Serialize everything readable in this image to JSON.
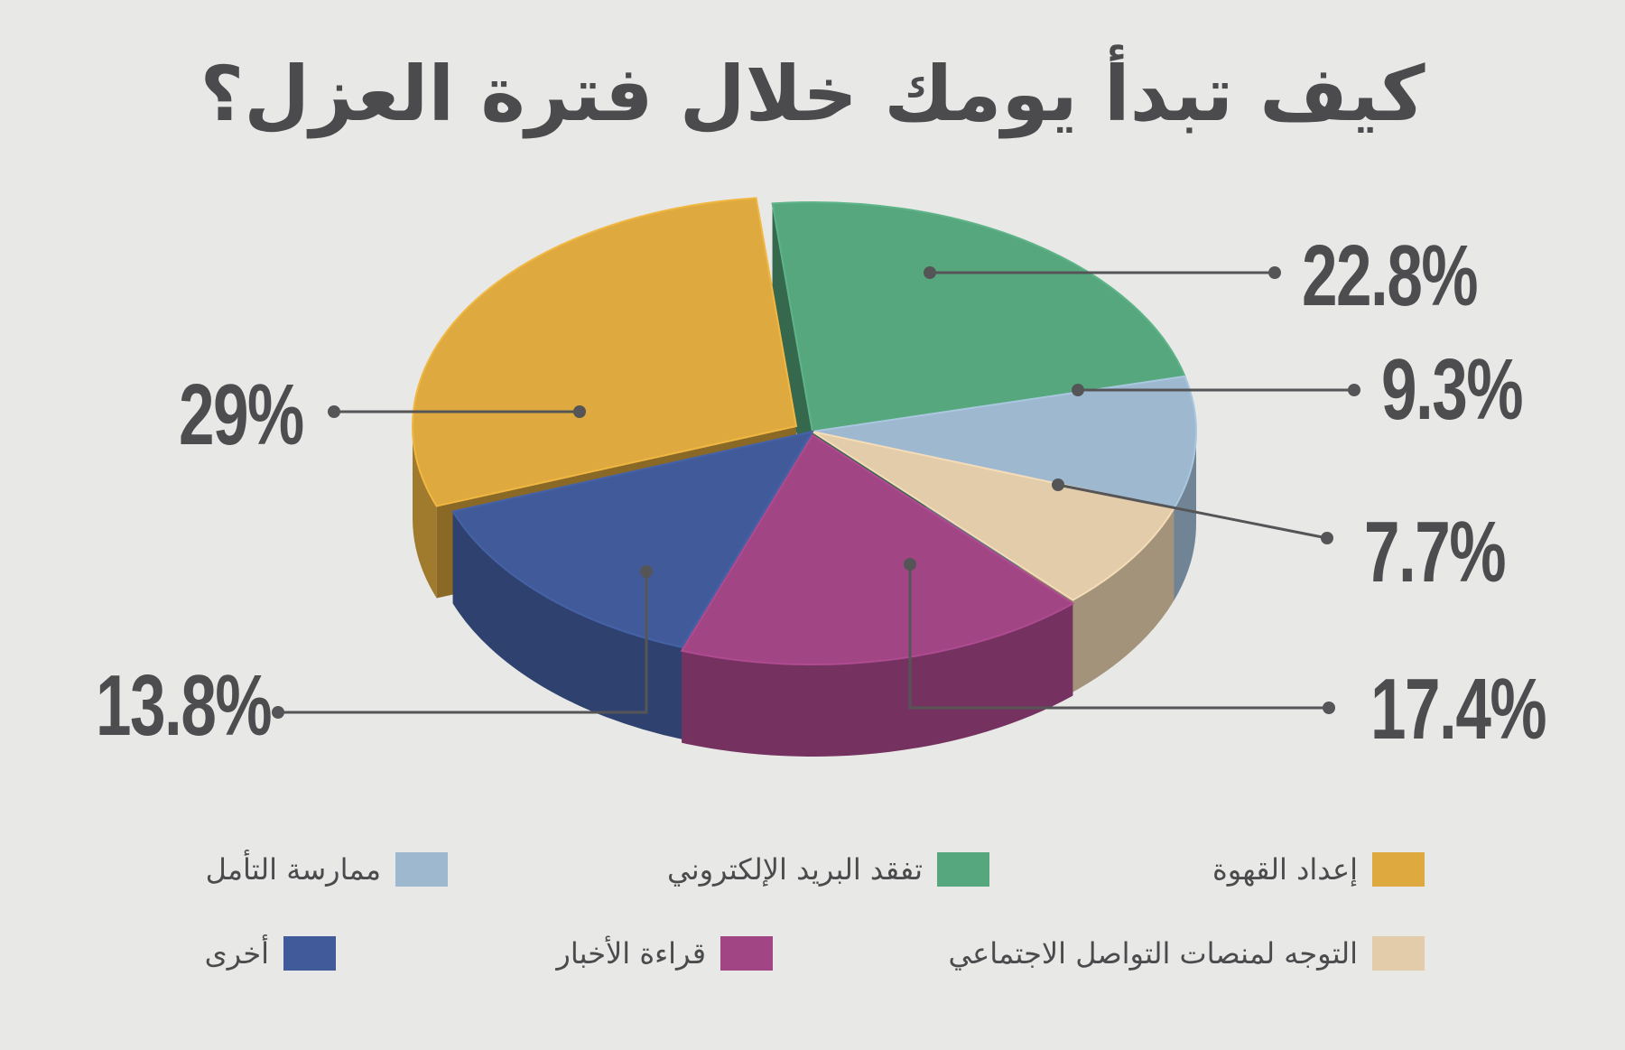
{
  "title": "كيف تبدأ يومك خلال فترة العزل؟",
  "chart_data": {
    "type": "pie",
    "style": "3d",
    "title": "كيف تبدأ يومك خلال فترة العزل؟",
    "slices": [
      {
        "label": "تفقد البريد الإلكتروني",
        "value": 22.8,
        "display": "22.8%",
        "color": "#57a77e"
      },
      {
        "label": "ممارسة التأمل",
        "value": 9.3,
        "display": "9.3%",
        "color": "#9db8cf"
      },
      {
        "label": "التوجه لمنصات التواصل الاجتماعي",
        "value": 7.7,
        "display": "7.7%",
        "color": "#e3ccaa"
      },
      {
        "label": "قراءة الأخبار",
        "value": 17.4,
        "display": "17.4%",
        "color": "#a24585"
      },
      {
        "label": "أخرى",
        "value": 13.8,
        "display": "13.8%",
        "color": "#415b9a"
      },
      {
        "label": "إعداد القهوة",
        "value": 29,
        "display": "29%",
        "color": "#dea93e"
      }
    ],
    "legend_position": "bottom",
    "legend": [
      {
        "label": "إعداد القهوة",
        "color": "#dea93e"
      },
      {
        "label": "تفقد البريد الإلكتروني",
        "color": "#57a77e"
      },
      {
        "label": "ممارسة التأمل",
        "color": "#9db8cf"
      },
      {
        "label": "التوجه لمنصات التواصل الاجتماعي",
        "color": "#e3ccaa"
      },
      {
        "label": "قراءة الأخبار",
        "color": "#a24585"
      },
      {
        "label": "أخرى",
        "color": "#415b9a"
      }
    ]
  }
}
